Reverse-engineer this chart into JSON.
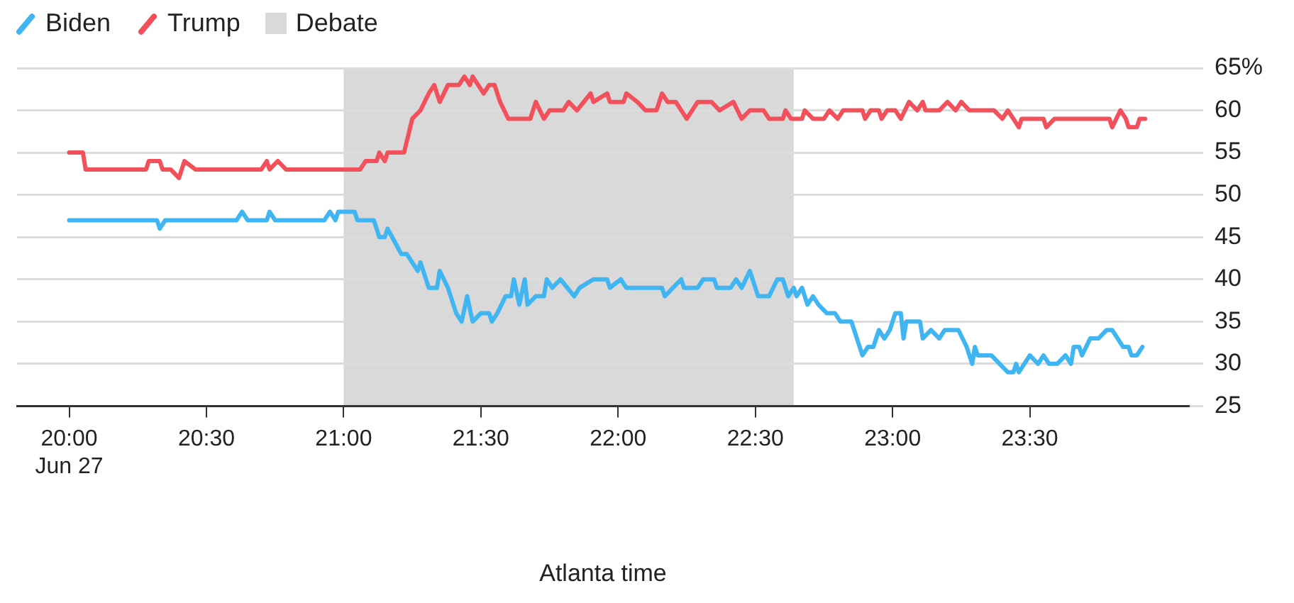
{
  "chart_data": {
    "type": "line",
    "xlabel": "Atlanta time",
    "legend": "top left",
    "grid": "y",
    "marker": "none",
    "line_style": "solid",
    "xlim": [
      19.81,
      24.08
    ],
    "xticks": [
      {
        "value": 20,
        "label": "20:00\nJun 27"
      },
      {
        "value": 20.5,
        "label": "20:30"
      },
      {
        "value": 21,
        "label": "21:00"
      },
      {
        "value": 21.5,
        "label": "21:30"
      },
      {
        "value": 22,
        "label": "22:00"
      },
      {
        "value": 22.5,
        "label": "22:30"
      },
      {
        "value": 23,
        "label": "23:00"
      },
      {
        "value": 23.5,
        "label": "23:30"
      }
    ],
    "ylim": [
      25,
      65
    ],
    "yticks": [
      25,
      30,
      35,
      40,
      45,
      50,
      55,
      60,
      {
        "value": 65,
        "label": "65%"
      }
    ],
    "bands": [
      {
        "axis": "x",
        "from": 21,
        "to": 22.64,
        "label": "Debate",
        "color": "#d9d9d9"
      }
    ],
    "series": [
      {
        "name": "Biden",
        "color": "#3fb5f2",
        "x": [
          20.0,
          20.32,
          20.33,
          20.35,
          20.61,
          20.63,
          20.65,
          20.72,
          20.73,
          20.75,
          20.93,
          20.95,
          20.97,
          20.98,
          21.04,
          21.05,
          21.11,
          21.13,
          21.15,
          21.16,
          21.21,
          21.23,
          21.27,
          21.28,
          21.31,
          21.34,
          21.35,
          21.38,
          21.41,
          21.43,
          21.45,
          21.47,
          21.5,
          21.53,
          21.54,
          21.56,
          21.59,
          21.61,
          21.62,
          21.64,
          21.66,
          21.67,
          21.7,
          21.73,
          21.74,
          21.76,
          21.79,
          21.84,
          21.86,
          21.91,
          21.96,
          21.97,
          22.01,
          22.03,
          22.16,
          22.17,
          22.2,
          22.23,
          22.24,
          22.29,
          22.31,
          22.35,
          22.36,
          22.41,
          22.43,
          22.45,
          22.48,
          22.51,
          22.55,
          22.58,
          22.6,
          22.62,
          22.64,
          22.65,
          22.67,
          22.69,
          22.71,
          22.73,
          22.76,
          22.79,
          22.81,
          22.85,
          22.89,
          22.91,
          22.93,
          22.95,
          22.97,
          22.99,
          23.01,
          23.03,
          23.04,
          23.05,
          23.1,
          23.11,
          23.14,
          23.17,
          23.19,
          23.24,
          23.27,
          23.29,
          23.3,
          23.31,
          23.36,
          23.39,
          23.42,
          23.44,
          23.45,
          23.46,
          23.48,
          23.5,
          23.53,
          23.55,
          23.57,
          23.6,
          23.63,
          23.65,
          23.66,
          23.68,
          23.69,
          23.72,
          23.75,
          23.78,
          23.8,
          23.82,
          23.84,
          23.86,
          23.87,
          23.89,
          23.91
        ],
        "values": [
          47,
          47,
          46,
          47,
          47,
          48,
          47,
          47,
          48,
          47,
          47,
          48,
          47,
          48,
          48,
          47,
          47,
          45,
          45,
          46,
          43,
          43,
          41,
          42,
          39,
          39,
          41,
          39,
          36,
          35,
          38,
          35,
          36,
          36,
          35,
          36,
          38,
          38,
          40,
          37,
          40,
          37,
          38,
          38,
          40,
          39,
          40,
          38,
          39,
          40,
          40,
          39,
          40,
          39,
          39,
          38,
          39,
          40,
          39,
          39,
          40,
          40,
          39,
          39,
          40,
          39,
          41,
          38,
          38,
          40,
          40,
          38,
          39,
          38,
          39,
          37,
          38,
          37,
          36,
          36,
          35,
          35,
          31,
          32,
          32,
          34,
          33,
          34,
          36,
          36,
          33,
          35,
          35,
          33,
          34,
          33,
          34,
          34,
          32,
          30,
          32,
          31,
          31,
          30,
          29,
          29,
          30,
          29,
          30,
          31,
          30,
          31,
          30,
          30,
          31,
          30,
          32,
          32,
          31,
          33,
          33,
          34,
          34,
          33,
          32,
          32,
          31,
          31,
          32
        ]
      },
      {
        "name": "Trump",
        "color": "#f2505a",
        "x": [
          20.0,
          20.05,
          20.06,
          20.28,
          20.29,
          20.33,
          20.34,
          20.37,
          20.4,
          20.42,
          20.46,
          20.7,
          20.72,
          20.73,
          20.76,
          20.79,
          21.06,
          21.08,
          21.12,
          21.13,
          21.15,
          21.16,
          21.22,
          21.25,
          21.28,
          21.31,
          21.33,
          21.35,
          21.38,
          21.42,
          21.44,
          21.46,
          21.47,
          21.51,
          21.53,
          21.55,
          21.57,
          21.6,
          21.68,
          21.7,
          21.73,
          21.75,
          21.8,
          21.82,
          21.85,
          21.9,
          21.91,
          21.96,
          21.97,
          22.02,
          22.03,
          22.07,
          22.1,
          22.14,
          22.16,
          22.18,
          22.21,
          22.25,
          22.29,
          22.34,
          22.37,
          22.42,
          22.45,
          22.48,
          22.53,
          22.55,
          22.6,
          22.61,
          22.63,
          22.67,
          22.68,
          22.71,
          22.75,
          22.77,
          22.8,
          22.82,
          22.89,
          22.9,
          22.92,
          22.95,
          22.96,
          22.98,
          23.01,
          23.03,
          23.06,
          23.09,
          23.11,
          23.12,
          23.17,
          23.2,
          23.23,
          23.25,
          23.28,
          23.37,
          23.4,
          23.42,
          23.44,
          23.46,
          23.47,
          23.55,
          23.56,
          23.59,
          23.79,
          23.8,
          23.83,
          23.85,
          23.86,
          23.89,
          23.9,
          23.92
        ],
        "values": [
          55,
          55,
          53,
          53,
          54,
          54,
          53,
          53,
          52,
          54,
          53,
          53,
          54,
          53,
          54,
          53,
          53,
          54,
          54,
          55,
          54,
          55,
          55,
          59,
          60,
          62,
          63,
          61,
          63,
          63,
          64,
          63,
          64,
          62,
          63,
          63,
          61,
          59,
          59,
          61,
          59,
          60,
          60,
          61,
          60,
          62,
          61,
          62,
          61,
          61,
          62,
          61,
          60,
          60,
          62,
          61,
          61,
          59,
          61,
          61,
          60,
          61,
          59,
          60,
          60,
          59,
          59,
          60,
          59,
          59,
          60,
          59,
          59,
          60,
          59,
          60,
          60,
          59,
          60,
          60,
          59,
          60,
          60,
          59,
          61,
          60,
          61,
          60,
          60,
          61,
          60,
          61,
          60,
          60,
          59,
          60,
          59,
          58,
          59,
          59,
          58,
          59,
          59,
          58,
          60,
          59,
          58,
          58,
          59,
          59
        ]
      }
    ]
  }
}
